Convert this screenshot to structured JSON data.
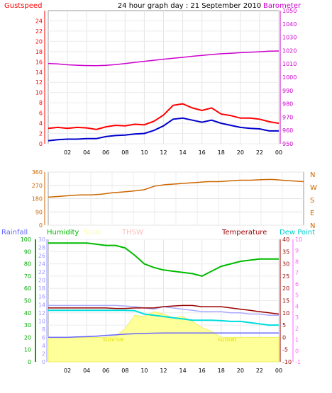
{
  "chart_data": [
    {
      "id": "wind_baro",
      "type": "line",
      "title": "24 hour graph day : 21 September 2010",
      "left_axis_label": "Gustspeed",
      "right_axis_label": "Barometer",
      "left_ylim": [
        0,
        26
      ],
      "left_ticks": [
        "0",
        "2",
        "4",
        "6",
        "8",
        "10",
        "12",
        "14",
        "16",
        "18",
        "20",
        "22",
        "24"
      ],
      "right_ylim": [
        950,
        1050
      ],
      "right_ticks": [
        "950",
        "960",
        "970",
        "980",
        "990",
        "1000",
        "1010",
        "1020",
        "1030",
        "1040",
        "1050"
      ],
      "x_tick_labels": [
        "02",
        "04",
        "06",
        "08",
        "10",
        "12",
        "14",
        "16",
        "18",
        "20",
        "22",
        "00"
      ],
      "colors": {
        "gust": "#ff0000",
        "wind": "#0000cc",
        "barometer": "#cc00cc",
        "left_axis": "#ff0000",
        "right_axis": "#cc00cc"
      },
      "series": [
        {
          "name": "Gustspeed",
          "x": [
            0,
            1,
            2,
            3,
            4,
            5,
            6,
            7,
            8,
            9,
            10,
            11,
            12,
            13,
            14,
            15,
            16,
            17,
            18,
            19,
            20,
            21,
            22,
            23,
            24
          ],
          "values": [
            3.0,
            3.2,
            3.0,
            3.2,
            3.1,
            2.8,
            3.3,
            3.6,
            3.5,
            3.8,
            3.7,
            4.4,
            5.6,
            7.5,
            7.8,
            7.0,
            6.5,
            7.0,
            5.8,
            5.5,
            5.0,
            5.0,
            4.8,
            4.3,
            4.0
          ]
        },
        {
          "x": [
            0,
            1,
            2,
            3,
            4,
            5,
            6,
            7,
            8,
            9,
            10,
            11,
            12,
            13,
            14,
            15,
            16,
            17,
            18,
            19,
            20,
            21,
            22,
            23,
            24
          ],
          "values": [
            0.6,
            0.8,
            0.9,
            0.9,
            1.0,
            1.0,
            1.4,
            1.6,
            1.7,
            1.9,
            2.0,
            2.6,
            3.5,
            4.8,
            5.0,
            4.6,
            4.2,
            4.6,
            4.0,
            3.6,
            3.2,
            3.0,
            2.9,
            2.5,
            2.5
          ]
        },
        {
          "name": "Barometer",
          "x": [
            0,
            1,
            2,
            3,
            4,
            5,
            6,
            7,
            8,
            9,
            10,
            11,
            12,
            13,
            14,
            15,
            16,
            17,
            18,
            19,
            20,
            21,
            22,
            23,
            24
          ],
          "values": [
            1010.3,
            1010.0,
            1009.3,
            1009.0,
            1008.7,
            1008.6,
            1008.9,
            1009.4,
            1010.2,
            1011.1,
            1011.9,
            1012.7,
            1013.5,
            1014.2,
            1014.9,
            1015.7,
            1016.4,
            1017.0,
            1017.6,
            1018.0,
            1018.4,
            1018.7,
            1019.1,
            1019.5,
            1019.7
          ]
        }
      ],
      "grid": true
    },
    {
      "id": "wind_direction",
      "type": "line",
      "ylim": [
        0,
        360
      ],
      "y_ticks": [
        "0",
        "90",
        "180",
        "270",
        "360"
      ],
      "compass_labels": [
        "N",
        "W",
        "S",
        "E",
        "N"
      ],
      "colors": {
        "line": "#cc6600",
        "axis": "#cc6600"
      },
      "series": [
        {
          "x": [
            0,
            1,
            2,
            3,
            4,
            5,
            6,
            7,
            8,
            9,
            10,
            11,
            12,
            13,
            14,
            15,
            16,
            17,
            18,
            19,
            20,
            21,
            22,
            23,
            24
          ],
          "values": [
            190,
            195,
            200,
            205,
            205,
            210,
            220,
            225,
            232,
            240,
            265,
            275,
            280,
            285,
            290,
            295,
            295,
            300,
            305,
            305,
            308,
            310,
            305,
            300,
            295
          ]
        }
      ],
      "grid": true
    },
    {
      "id": "temp_hum_rain",
      "type": "line",
      "legend": [
        "Rainfall",
        "Humidity",
        "Solar",
        "THSW",
        "Temperature",
        "Dew Point"
      ],
      "annotations": [
        "sunrise",
        "sunset"
      ],
      "humidity_ylim": [
        0,
        100
      ],
      "humidity_ticks": [
        "0",
        "10",
        "20",
        "30",
        "40",
        "50",
        "60",
        "70",
        "80",
        "90",
        "100"
      ],
      "temp_ylim": [
        -10,
        40
      ],
      "temp_ticks": [
        "-10",
        "-5",
        "0",
        "5",
        "10",
        "15",
        "20",
        "25",
        "30",
        "35",
        "40"
      ],
      "rain_ticks": [
        "0",
        "2",
        "4",
        "6",
        "8",
        "10",
        "12",
        "14",
        "16",
        "18",
        "20",
        "22",
        "24",
        "26",
        "28",
        "30"
      ],
      "dew_ticks": [
        "-1",
        "0",
        "1",
        "2",
        "3",
        "4",
        "5",
        "6",
        "7",
        "8",
        "9",
        "10"
      ],
      "x_tick_labels": [
        "02",
        "04",
        "06",
        "08",
        "10",
        "12",
        "14",
        "16",
        "18",
        "20",
        "22",
        "00"
      ],
      "colors": {
        "rainfall": "#6666ff",
        "humidity": "#00bb00",
        "solar": "#ffff99",
        "thsw": "#ff66ff",
        "temperature": "#990000",
        "dewpoint": "#00dddd",
        "humidity_axis": "#00aa00",
        "rain_axis": "#9999ff",
        "temp_axis": "#990000",
        "dew_axis": "#ff66ff"
      },
      "series": [
        {
          "name": "Humidity",
          "x": [
            0,
            1,
            2,
            3,
            4,
            5,
            6,
            7,
            8,
            9,
            10,
            11,
            12,
            13,
            14,
            15,
            16,
            17,
            18,
            19,
            20,
            21,
            22,
            23,
            24
          ],
          "values": [
            97,
            97,
            97,
            97,
            97,
            96,
            95,
            95,
            93,
            87,
            80,
            77,
            75,
            74,
            73,
            72,
            70,
            74,
            78,
            80,
            82,
            83,
            84,
            84,
            84
          ]
        },
        {
          "name": "Temperature",
          "x": [
            0,
            1,
            2,
            3,
            4,
            5,
            6,
            7,
            8,
            9,
            10,
            11,
            12,
            13,
            14,
            15,
            16,
            17,
            18,
            19,
            20,
            21,
            22,
            23,
            24
          ],
          "values": [
            12.0,
            12.0,
            12.0,
            12.0,
            12.0,
            12.0,
            12.0,
            11.8,
            11.8,
            12.0,
            12.0,
            12.0,
            12.5,
            12.8,
            13.0,
            13.0,
            12.5,
            12.5,
            12.5,
            12.0,
            11.5,
            11.0,
            10.5,
            10.0,
            9.5
          ]
        },
        {
          "name": "Dew Point",
          "x": [
            0,
            1,
            2,
            3,
            4,
            5,
            6,
            7,
            8,
            9,
            10,
            11,
            12,
            13,
            14,
            15,
            16,
            17,
            18,
            19,
            20,
            21,
            22,
            23,
            24
          ],
          "values": [
            11.0,
            11.0,
            11.0,
            11.0,
            11.0,
            11.0,
            11.0,
            11.0,
            11.0,
            10.9,
            9.5,
            9.0,
            8.5,
            8.0,
            7.5,
            7.0,
            7.0,
            7.0,
            6.8,
            6.5,
            6.5,
            6.0,
            5.5,
            5.0,
            5.0
          ]
        },
        {
          "name": "THSW",
          "x": [
            0,
            1,
            2,
            3,
            4,
            5,
            6,
            7,
            8,
            9,
            10,
            11,
            12,
            13,
            14,
            15,
            16,
            17,
            18,
            19,
            20,
            21,
            22,
            23,
            24
          ],
          "values": [
            13.0,
            13.0,
            13.0,
            13.0,
            13.0,
            13.0,
            13.0,
            13.0,
            12.8,
            12.5,
            12.0,
            11.5,
            12.5,
            12.0,
            11.5,
            11.0,
            10.5,
            10.5,
            10.5,
            10.0,
            10.0,
            9.5,
            9.5,
            9.0,
            9.0
          ]
        },
        {
          "name": "Rainfall",
          "x": [
            0,
            1,
            2,
            3,
            4,
            5,
            6,
            7,
            8,
            9,
            10,
            11,
            12,
            13,
            14,
            15,
            16,
            17,
            18,
            19,
            20,
            21,
            22,
            23,
            24
          ],
          "values": [
            0,
            0,
            0,
            0.2,
            0.3,
            0.5,
            0.8,
            1.0,
            1.3,
            1.5,
            1.6,
            1.7,
            1.8,
            1.8,
            1.8,
            1.8,
            1.8,
            1.8,
            1.8,
            1.8,
            1.8,
            1.8,
            1.8,
            1.8,
            1.8
          ]
        },
        {
          "name": "Solar",
          "x": [
            0,
            1,
            2,
            3,
            4,
            5,
            6,
            7,
            8,
            9,
            10,
            11,
            12,
            13,
            14,
            15,
            16,
            17,
            18,
            19,
            20,
            21,
            22,
            23,
            24
          ],
          "values": [
            0,
            0,
            0,
            0,
            0,
            0,
            0,
            0.5,
            3.5,
            9.0,
            8.5,
            10.5,
            9.5,
            8.0,
            8.5,
            6.5,
            4.0,
            2.5,
            0,
            0,
            0,
            0,
            0,
            0,
            0
          ]
        }
      ],
      "grid": true
    }
  ]
}
